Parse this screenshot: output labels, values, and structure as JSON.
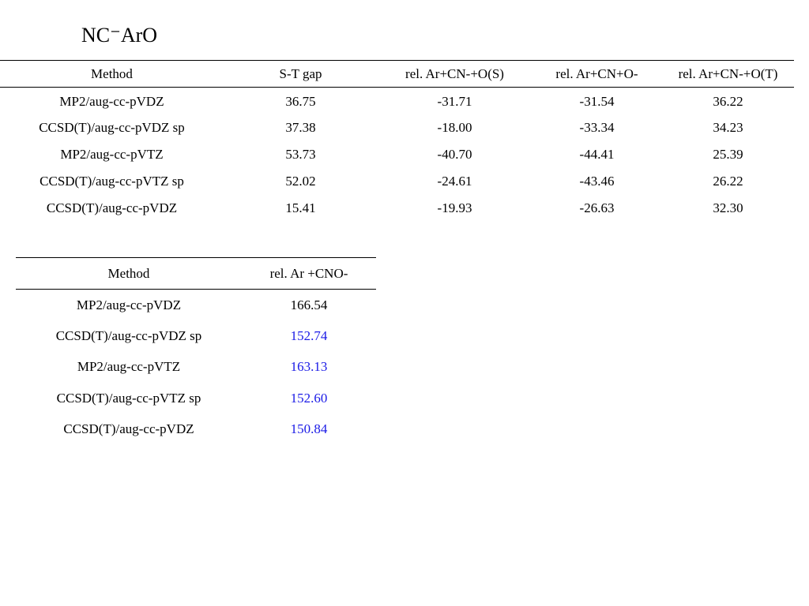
{
  "title": "NC⁻ArO",
  "colors": {
    "text": "#000000",
    "highlight": "#1a1ae6"
  },
  "table1": {
    "headers": [
      "Method",
      "S-T gap",
      "rel. Ar+CN-+O(S)",
      "rel. Ar+CN+O-",
      "rel. Ar+CN-+O(T)"
    ],
    "rows": [
      [
        "MP2/aug-cc-pVDZ",
        "36.75",
        "-31.71",
        "-31.54",
        "36.22"
      ],
      [
        "CCSD(T)/aug-cc-pVDZ sp",
        "37.38",
        "-18.00",
        "-33.34",
        "34.23"
      ],
      [
        "MP2/aug-cc-pVTZ",
        "53.73",
        "-40.70",
        "-44.41",
        "25.39"
      ],
      [
        "CCSD(T)/aug-cc-pVTZ sp",
        "52.02",
        "-24.61",
        "-43.46",
        "26.22"
      ],
      [
        "CCSD(T)/aug-cc-pVDZ",
        "15.41",
        "-19.93",
        "-26.63",
        "32.30"
      ]
    ]
  },
  "table2": {
    "headers": [
      "Method",
      "rel. Ar +CNO-"
    ],
    "rows": [
      [
        "MP2/aug-cc-pVDZ",
        "166.54"
      ],
      [
        "CCSD(T)/aug-cc-pVDZ sp",
        "152.74"
      ],
      [
        "MP2/aug-cc-pVTZ",
        "163.13"
      ],
      [
        "CCSD(T)/aug-cc-pVTZ sp",
        "152.60"
      ],
      [
        "CCSD(T)/aug-cc-pVDZ",
        "150.84"
      ]
    ]
  }
}
